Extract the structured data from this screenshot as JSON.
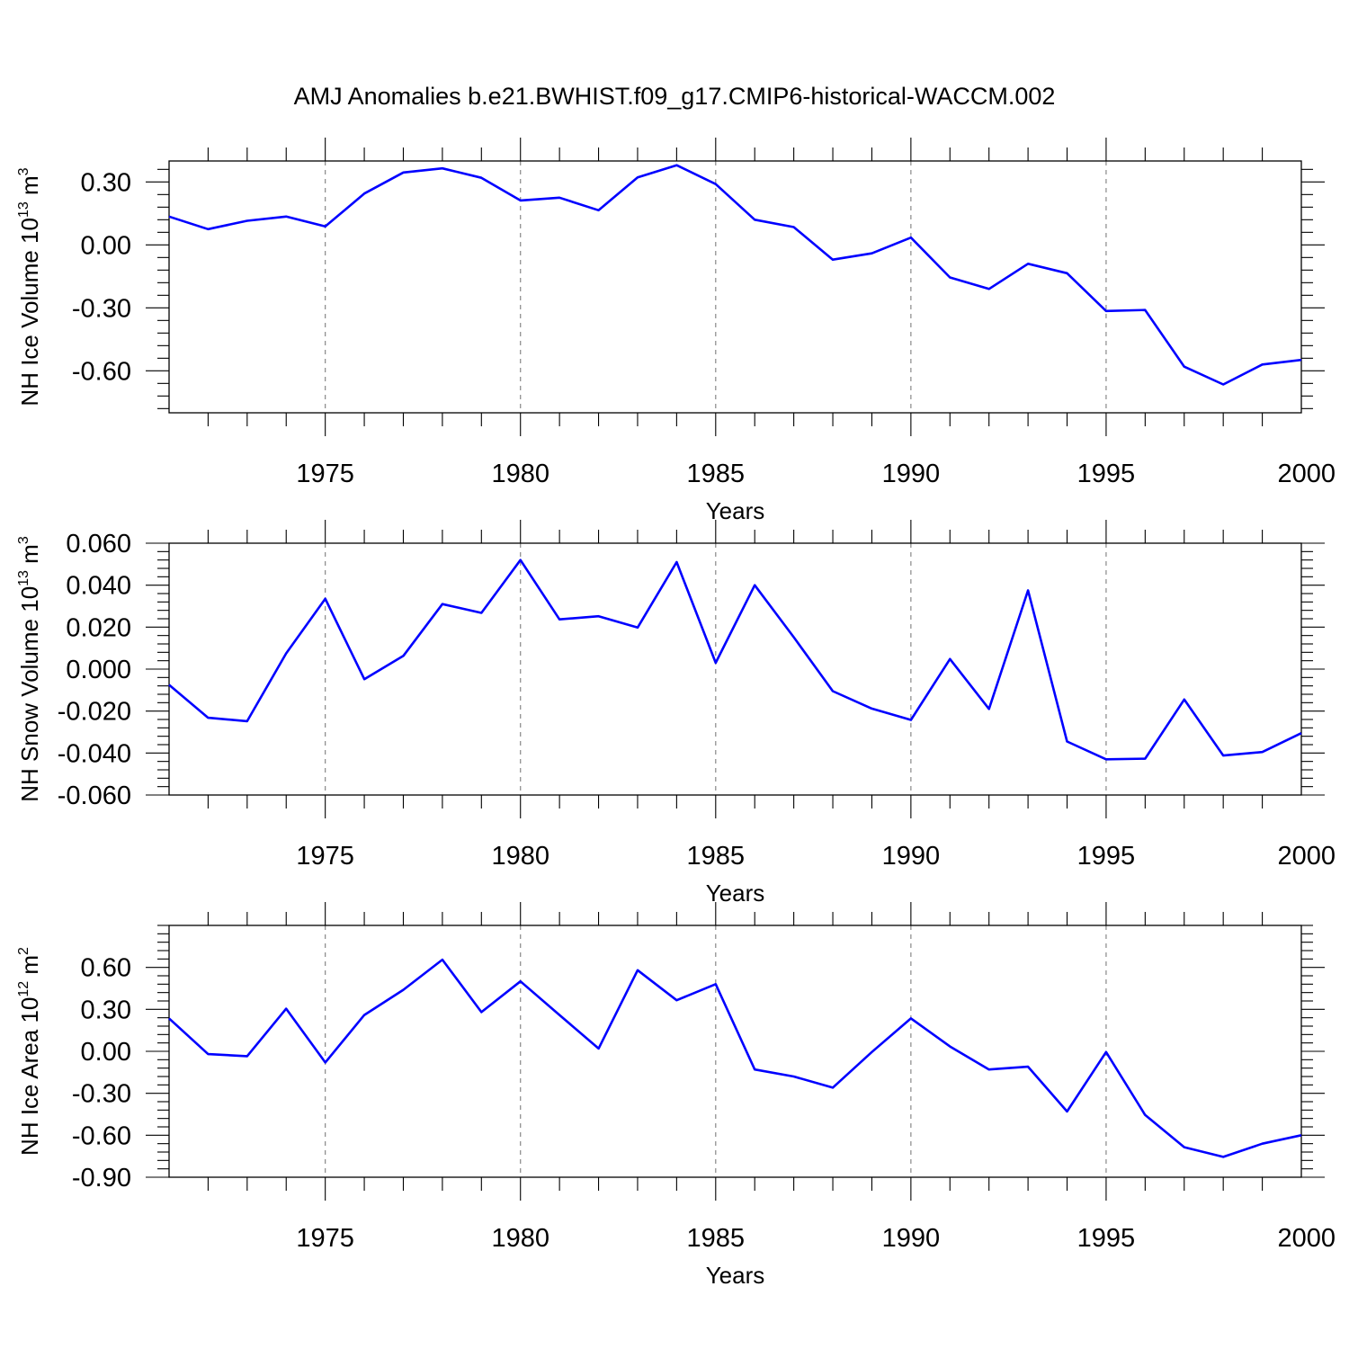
{
  "title": "AMJ Anomalies b.e21.BWHIST.f09_g17.CMIP6-historical-WACCM.002",
  "colors": {
    "line": "#0000ff",
    "axes": "#000000",
    "grid": "#888888"
  },
  "chart_data": [
    {
      "type": "line",
      "ylabel_main": "NH Ice Volume 10",
      "ylabel_exp": "13",
      "ylabel_unit": " m",
      "ylabel_unit_exp": "3",
      "xlabel": "Years",
      "xlim": [
        1971,
        2000
      ],
      "ylim": [
        -0.8,
        0.4
      ],
      "yticks": [
        0.3,
        0.0,
        -0.3,
        -0.6
      ],
      "ytick_labels": [
        "0.30",
        "0.00",
        "-0.30",
        "-0.60"
      ],
      "xticks": [
        1975,
        1980,
        1985,
        1990,
        1995,
        2000
      ],
      "xtick_labels": [
        "1975",
        "1980",
        "1985",
        "1990",
        "1995",
        "2000"
      ],
      "grid": "vertical-dashed",
      "x": [
        1971,
        1972,
        1973,
        1974,
        1975,
        1976,
        1977,
        1978,
        1979,
        1980,
        1981,
        1982,
        1983,
        1984,
        1985,
        1986,
        1987,
        1988,
        1989,
        1990,
        1991,
        1992,
        1993,
        1994,
        1995,
        1996,
        1997,
        1998,
        1999,
        2000
      ],
      "values": [
        0.135,
        0.075,
        0.115,
        0.135,
        0.088,
        0.245,
        0.345,
        0.365,
        0.32,
        0.212,
        0.225,
        0.165,
        0.322,
        0.38,
        0.29,
        0.12,
        0.085,
        -0.07,
        -0.04,
        0.035,
        -0.155,
        -0.21,
        -0.09,
        -0.135,
        -0.315,
        -0.31,
        -0.58,
        -0.665,
        -0.57,
        -0.548
      ]
    },
    {
      "type": "line",
      "ylabel_main": "NH Snow Volume 10",
      "ylabel_exp": "13",
      "ylabel_unit": " m",
      "ylabel_unit_exp": "3",
      "xlabel": "Years",
      "xlim": [
        1971,
        2000
      ],
      "ylim": [
        -0.06,
        0.06
      ],
      "yticks": [
        0.06,
        0.04,
        0.02,
        0.0,
        -0.02,
        -0.04,
        -0.06
      ],
      "ytick_labels": [
        "0.060",
        "0.040",
        "0.020",
        "0.000",
        "-0.020",
        "-0.040",
        "-0.060"
      ],
      "xticks": [
        1975,
        1980,
        1985,
        1990,
        1995,
        2000
      ],
      "xtick_labels": [
        "1975",
        "1980",
        "1985",
        "1990",
        "1995",
        "2000"
      ],
      "grid": "vertical-dashed",
      "x": [
        1971,
        1972,
        1973,
        1974,
        1975,
        1976,
        1977,
        1978,
        1979,
        1980,
        1981,
        1982,
        1983,
        1984,
        1985,
        1986,
        1987,
        1988,
        1989,
        1990,
        1991,
        1992,
        1993,
        1994,
        1995,
        1996,
        1997,
        1998,
        1999,
        2000
      ],
      "values": [
        -0.0075,
        -0.0232,
        -0.0248,
        0.0075,
        0.0335,
        -0.0048,
        0.0063,
        0.031,
        0.0268,
        0.052,
        0.0237,
        0.0252,
        0.0198,
        0.051,
        0.003,
        0.04,
        0.0152,
        -0.0105,
        -0.0188,
        -0.0242,
        0.0048,
        -0.019,
        0.0375,
        -0.0345,
        -0.043,
        -0.0427,
        -0.0145,
        -0.0412,
        -0.0395,
        -0.0305
      ]
    },
    {
      "type": "line",
      "ylabel_main": "NH Ice Area 10",
      "ylabel_exp": "12",
      "ylabel_unit": " m",
      "ylabel_unit_exp": "2",
      "xlabel": "Years",
      "xlim": [
        1971,
        2000
      ],
      "ylim": [
        -0.9,
        0.9
      ],
      "yticks": [
        0.6,
        0.3,
        0.0,
        -0.3,
        -0.6,
        -0.9
      ],
      "ytick_labels": [
        "0.60",
        "0.30",
        "0.00",
        "-0.30",
        "-0.60",
        "-0.90"
      ],
      "xticks": [
        1975,
        1980,
        1985,
        1990,
        1995,
        2000
      ],
      "xtick_labels": [
        "1975",
        "1980",
        "1985",
        "1990",
        "1995",
        "2000"
      ],
      "grid": "vertical-dashed",
      "x": [
        1971,
        1972,
        1973,
        1974,
        1975,
        1976,
        1977,
        1978,
        1979,
        1980,
        1981,
        1982,
        1983,
        1984,
        1985,
        1986,
        1987,
        1988,
        1989,
        1990,
        1991,
        1992,
        1993,
        1994,
        1995,
        1996,
        1997,
        1998,
        1999,
        2000
      ],
      "values": [
        0.235,
        -0.02,
        -0.035,
        0.305,
        -0.08,
        0.26,
        0.44,
        0.655,
        0.28,
        0.5,
        0.26,
        0.02,
        0.58,
        0.365,
        0.48,
        -0.13,
        -0.18,
        -0.26,
        -0.005,
        0.235,
        0.035,
        -0.13,
        -0.11,
        -0.43,
        -0.005,
        -0.455,
        -0.685,
        -0.755,
        -0.66,
        -0.6
      ]
    }
  ]
}
